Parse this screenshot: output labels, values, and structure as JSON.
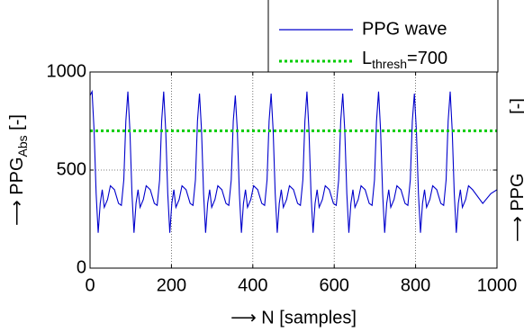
{
  "chart_data": {
    "type": "line",
    "x_label": "⟶ N [samples]",
    "y_label": [
      "⟶ PPG",
      "Abs",
      " [-]"
    ],
    "y2_label": [
      "⟶ PPG",
      " [-]"
    ],
    "xlim": [
      0,
      1000
    ],
    "xticks": [
      0,
      200,
      400,
      600,
      800,
      1000
    ],
    "ylim": [
      0,
      1000
    ],
    "yticks": [
      0,
      500,
      1000
    ],
    "grid": true,
    "legend": "top-right",
    "series": [
      {
        "name": "PPG wave",
        "color": "#0000cc",
        "x": [
          0,
          5,
          10,
          15,
          20,
          25,
          30,
          35,
          43,
          50,
          60,
          70,
          77,
          83,
          88,
          93,
          98,
          103,
          108,
          113,
          118,
          123,
          131,
          138,
          148,
          158,
          165,
          171,
          176,
          181,
          186,
          191,
          196,
          201,
          206,
          211,
          219,
          226,
          236,
          246,
          253,
          259,
          264,
          269,
          274,
          279,
          284,
          289,
          294,
          299,
          307,
          314,
          324,
          334,
          341,
          347,
          352,
          357,
          362,
          367,
          372,
          377,
          382,
          387,
          395,
          402,
          412,
          422,
          429,
          435,
          440,
          445,
          450,
          455,
          460,
          465,
          470,
          475,
          483,
          490,
          500,
          510,
          517,
          523,
          528,
          533,
          538,
          543,
          548,
          553,
          558,
          563,
          571,
          578,
          588,
          598,
          605,
          611,
          616,
          621,
          626,
          631,
          636,
          641,
          646,
          651,
          659,
          666,
          676,
          686,
          693,
          699,
          704,
          709,
          714,
          719,
          724,
          729,
          734,
          739,
          747,
          754,
          764,
          774,
          781,
          787,
          792,
          797,
          802,
          807,
          812,
          817,
          822,
          827,
          835,
          842,
          852,
          862,
          869,
          875,
          880,
          885,
          890,
          895,
          900,
          905,
          910,
          915,
          923,
          930,
          940,
          965,
          985,
          1000
        ],
        "values": [
          880,
          900,
          700,
          380,
          180,
          330,
          400,
          310,
          350,
          420,
          400,
          330,
          320,
          450,
          750,
          900,
          700,
          380,
          180,
          330,
          400,
          310,
          350,
          420,
          400,
          330,
          320,
          450,
          750,
          900,
          700,
          380,
          180,
          330,
          400,
          310,
          350,
          420,
          400,
          330,
          320,
          450,
          750,
          890,
          700,
          380,
          180,
          330,
          400,
          310,
          350,
          420,
          400,
          330,
          320,
          450,
          750,
          880,
          700,
          380,
          180,
          330,
          400,
          310,
          350,
          420,
          400,
          330,
          320,
          450,
          750,
          890,
          700,
          380,
          180,
          330,
          400,
          310,
          350,
          420,
          400,
          330,
          320,
          450,
          750,
          900,
          700,
          380,
          180,
          330,
          400,
          310,
          350,
          420,
          400,
          330,
          320,
          450,
          750,
          890,
          700,
          380,
          180,
          330,
          400,
          310,
          350,
          420,
          400,
          330,
          320,
          450,
          750,
          900,
          700,
          380,
          180,
          330,
          400,
          310,
          350,
          420,
          400,
          330,
          320,
          450,
          750,
          890,
          700,
          380,
          180,
          330,
          400,
          310,
          350,
          420,
          400,
          330,
          320,
          450,
          750,
          900,
          700,
          380,
          180,
          330,
          400,
          310,
          350,
          420,
          400,
          330,
          380,
          400
        ]
      }
    ],
    "threshold": {
      "label": [
        "L",
        "thresh",
        "=700"
      ],
      "value": 700,
      "color": "#00cc00"
    }
  }
}
